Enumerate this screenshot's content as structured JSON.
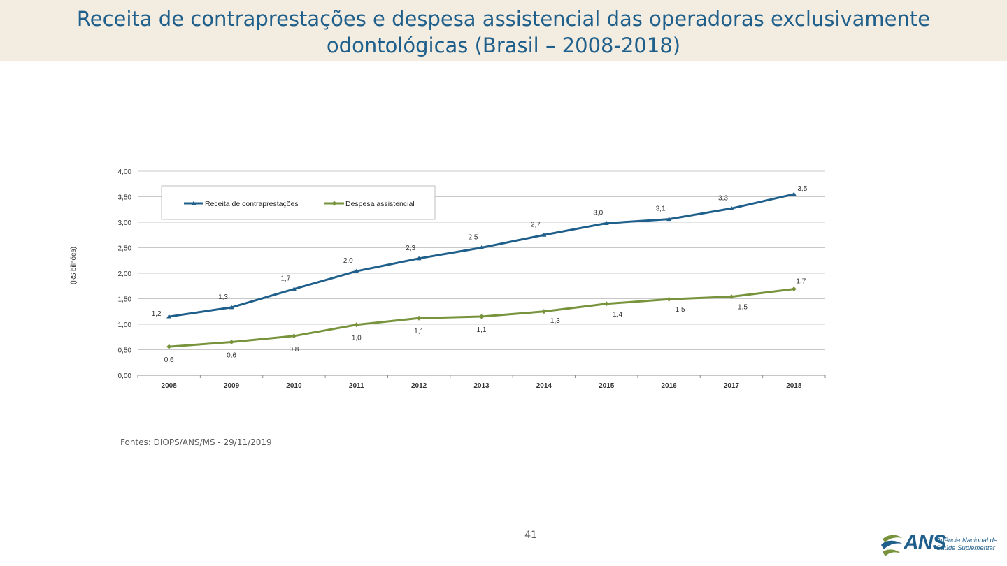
{
  "slide": {
    "title": "Receita de contraprestações e despesa assistencial das operadoras exclusivamente odontológicas (Brasil – 2008-2018)",
    "source": "Fontes: DIOPS/ANS/MS - 29/11/2019",
    "page_number": "41",
    "logo": {
      "word": "ANS",
      "line1": "Agência Nacional de",
      "line2": "Saúde Suplementar"
    }
  },
  "chart_data": {
    "type": "line",
    "title": "",
    "xlabel": "",
    "ylabel": "(R$ bilhões)",
    "ylim": [
      0,
      4
    ],
    "yticks": [
      0,
      0.5,
      1,
      1.5,
      2,
      2.5,
      3,
      3.5,
      4
    ],
    "ytick_labels": [
      "0,00",
      "0,50",
      "1,00",
      "1,50",
      "2,00",
      "2,50",
      "3,00",
      "3,50",
      "4,00"
    ],
    "grid": true,
    "legend_position": "top-left",
    "categories": [
      "2008",
      "2009",
      "2010",
      "2011",
      "2012",
      "2013",
      "2014",
      "2015",
      "2016",
      "2017",
      "2018"
    ],
    "series": [
      {
        "name": "Receita de contraprestações",
        "color": "#1f5f8b",
        "marker": "triangle",
        "values": [
          1.15,
          1.33,
          1.69,
          2.04,
          2.29,
          2.5,
          2.75,
          2.98,
          3.06,
          3.27,
          3.55
        ],
        "labels": [
          "1,2",
          "1,3",
          "1,7",
          "2,0",
          "2,3",
          "2,5",
          "2,7",
          "3,0",
          "3,1",
          "3,3",
          "3,5"
        ]
      },
      {
        "name": "Despesa assistencial",
        "color": "#77933c",
        "marker": "diamond",
        "values": [
          0.56,
          0.65,
          0.77,
          0.99,
          1.12,
          1.15,
          1.25,
          1.4,
          1.49,
          1.54,
          1.69
        ],
        "labels": [
          "0,6",
          "0,6",
          "0,8",
          "1,0",
          "1,1",
          "1,1",
          "1,3",
          "1,4",
          "1,5",
          "1,5",
          "1,7"
        ]
      }
    ]
  }
}
